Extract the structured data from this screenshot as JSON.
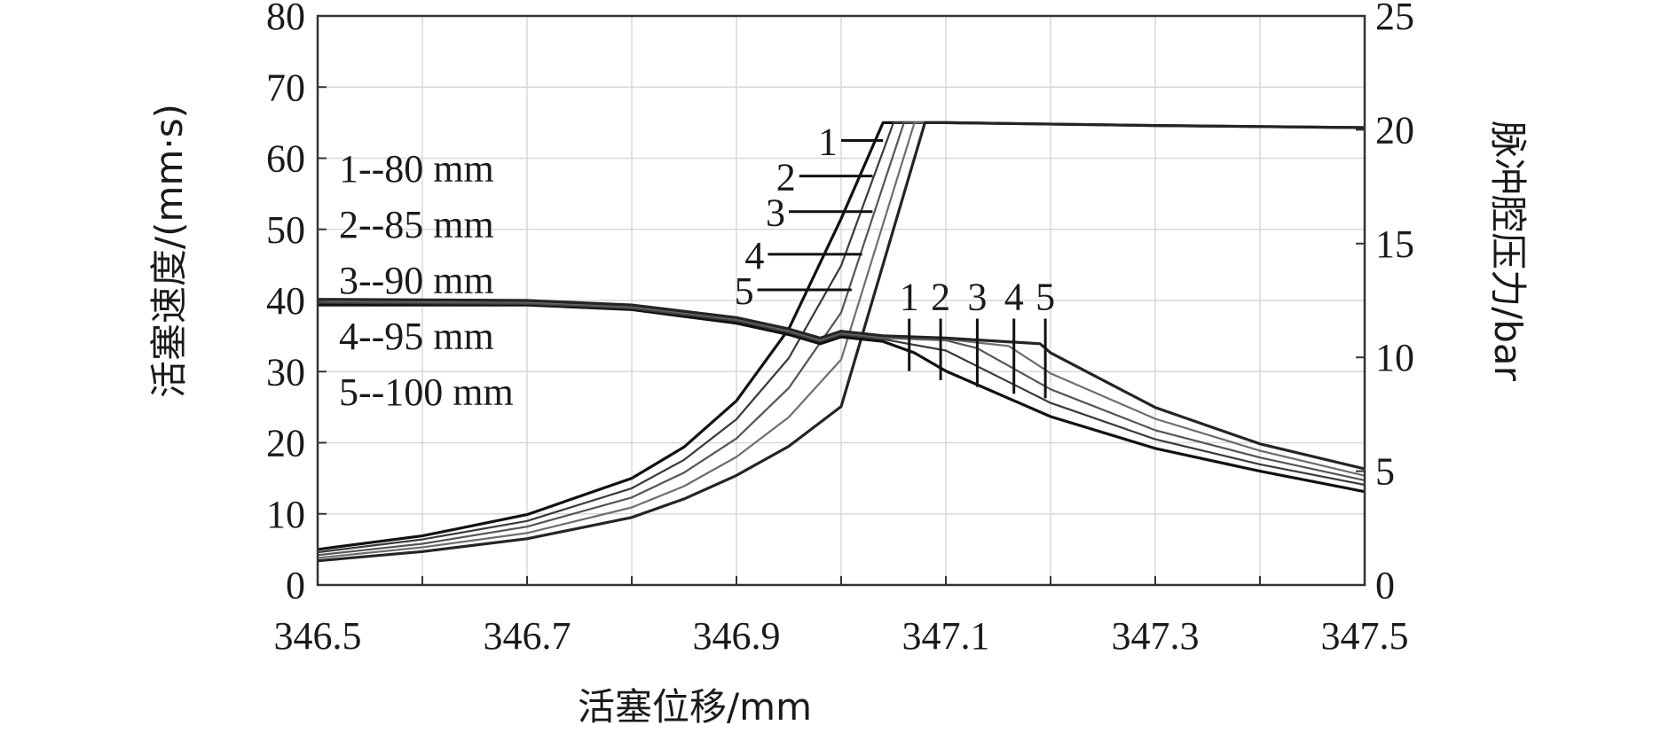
{
  "chart_data": {
    "type": "line",
    "title": "",
    "xlabel": "活塞位移/mm",
    "ylabel_left": "活塞速度/(mm·s)",
    "ylabel_right": "脉冲腔压力/bar",
    "xlim": [
      346.5,
      347.5
    ],
    "ylim_left": [
      0,
      80
    ],
    "ylim_right": [
      0,
      25
    ],
    "x_ticks": [
      "346.5",
      "346.7",
      "346.9",
      "347.1",
      "347.3",
      "347.5"
    ],
    "y_left_ticks": [
      "0",
      "10",
      "20",
      "30",
      "40",
      "50",
      "60",
      "70",
      "80"
    ],
    "y_right_ticks": [
      "0",
      "5",
      "10",
      "15",
      "20",
      "25"
    ],
    "grid": true,
    "legend": {
      "placement": "left",
      "entries": [
        "1--80 mm",
        "2--85 mm",
        "3--90 mm",
        "4--95 mm",
        "5--100 mm"
      ]
    },
    "velocity_series": [
      {
        "name": "1",
        "x": [
          346.5,
          346.6,
          346.7,
          346.8,
          346.85,
          346.9,
          346.95,
          347.0,
          347.04,
          347.1,
          347.3,
          347.5
        ],
        "y": [
          5.0,
          6.9,
          9.9,
          15.0,
          19.4,
          25.9,
          36.0,
          51.5,
          65.0,
          65.0,
          64.6,
          64.3
        ]
      },
      {
        "name": "2",
        "x": [
          346.5,
          346.6,
          346.7,
          346.8,
          346.85,
          346.9,
          346.95,
          347.0,
          347.05,
          347.1,
          347.3,
          347.5
        ],
        "y": [
          4.6,
          6.4,
          9.0,
          13.6,
          17.6,
          23.3,
          31.9,
          44.9,
          65.0,
          65.0,
          64.6,
          64.3
        ]
      },
      {
        "name": "3",
        "x": [
          346.5,
          346.6,
          346.7,
          346.8,
          346.85,
          346.9,
          346.95,
          347.0,
          347.06,
          347.1,
          347.3,
          347.5
        ],
        "y": [
          4.2,
          5.8,
          8.2,
          12.3,
          15.8,
          20.6,
          27.7,
          38.3,
          65.0,
          65.0,
          64.6,
          64.3
        ]
      },
      {
        "name": "4",
        "x": [
          346.5,
          346.6,
          346.7,
          346.8,
          346.85,
          346.9,
          346.95,
          347.0,
          347.07,
          347.1,
          347.3,
          347.5
        ],
        "y": [
          3.8,
          5.3,
          7.3,
          10.9,
          13.9,
          18.0,
          23.6,
          31.7,
          65.0,
          65.0,
          64.6,
          64.3
        ]
      },
      {
        "name": "5",
        "x": [
          346.5,
          346.6,
          346.7,
          346.8,
          346.85,
          346.9,
          346.95,
          347.0,
          347.08,
          347.1,
          347.3,
          347.5
        ],
        "y": [
          3.4,
          4.7,
          6.5,
          9.5,
          12.1,
          15.4,
          19.5,
          25.1,
          65.0,
          65.0,
          64.6,
          64.3
        ]
      }
    ],
    "pressure_series": [
      {
        "name": "1",
        "x": [
          346.5,
          346.7,
          346.8,
          346.9,
          346.95,
          346.98,
          347.0,
          347.04,
          347.07,
          347.1,
          347.2,
          347.3,
          347.4,
          347.5
        ],
        "y": [
          12.3,
          12.3,
          12.1,
          11.5,
          11.0,
          10.6,
          10.9,
          10.7,
          10.2,
          9.4,
          7.4,
          6.0,
          5.0,
          4.1
        ]
      },
      {
        "name": "2",
        "x": [
          346.5,
          346.7,
          346.8,
          346.9,
          346.95,
          346.98,
          347.0,
          347.04,
          347.1,
          347.2,
          347.3,
          347.4,
          347.5
        ],
        "y": [
          12.4,
          12.35,
          12.15,
          11.6,
          11.1,
          10.7,
          11.0,
          10.8,
          10.3,
          8.0,
          6.4,
          5.3,
          4.4
        ]
      },
      {
        "name": "3",
        "x": [
          346.5,
          346.7,
          346.8,
          346.9,
          346.95,
          346.98,
          347.0,
          347.04,
          347.1,
          347.13,
          347.2,
          347.3,
          347.4,
          347.5
        ],
        "y": [
          12.45,
          12.4,
          12.2,
          11.65,
          11.15,
          10.75,
          11.05,
          10.85,
          10.75,
          10.4,
          8.6,
          6.8,
          5.6,
          4.6
        ]
      },
      {
        "name": "4",
        "x": [
          346.5,
          346.7,
          346.8,
          346.9,
          346.95,
          346.98,
          347.0,
          347.04,
          347.1,
          347.16,
          347.2,
          347.3,
          347.4,
          347.5
        ],
        "y": [
          12.5,
          12.45,
          12.25,
          11.7,
          11.2,
          10.8,
          11.1,
          10.9,
          10.8,
          10.5,
          9.3,
          7.3,
          5.9,
          4.8
        ]
      },
      {
        "name": "5",
        "x": [
          346.5,
          346.7,
          346.8,
          346.9,
          346.95,
          346.98,
          347.0,
          347.04,
          347.1,
          347.19,
          347.2,
          347.3,
          347.4,
          347.5
        ],
        "y": [
          12.55,
          12.5,
          12.3,
          11.75,
          11.25,
          10.85,
          11.15,
          10.95,
          10.85,
          10.6,
          10.2,
          7.8,
          6.2,
          5.1
        ]
      }
    ],
    "velocity_markers": [
      {
        "label": "1",
        "x_start": 347.0,
        "x_end": 347.04,
        "y": 62.5
      },
      {
        "label": "2",
        "x_start": 346.96,
        "x_end": 347.03,
        "y": 57.5
      },
      {
        "label": "3",
        "x_start": 346.95,
        "x_end": 347.03,
        "y": 52.5
      },
      {
        "label": "4",
        "x_start": 346.93,
        "x_end": 347.02,
        "y": 46.5
      },
      {
        "label": "5",
        "x_start": 346.92,
        "x_end": 347.01,
        "y": 41.5
      }
    ],
    "pressure_markers": [
      {
        "label": "1",
        "x": 347.065,
        "y_top": 11.7,
        "y_bottom": 9.4
      },
      {
        "label": "2",
        "x": 347.095,
        "y_top": 11.7,
        "y_bottom": 9.0
      },
      {
        "label": "3",
        "x": 347.13,
        "y_top": 11.7,
        "y_bottom": 8.7
      },
      {
        "label": "4",
        "x": 347.165,
        "y_top": 11.7,
        "y_bottom": 8.4
      },
      {
        "label": "5",
        "x": 347.195,
        "y_top": 11.7,
        "y_bottom": 8.2
      }
    ]
  }
}
